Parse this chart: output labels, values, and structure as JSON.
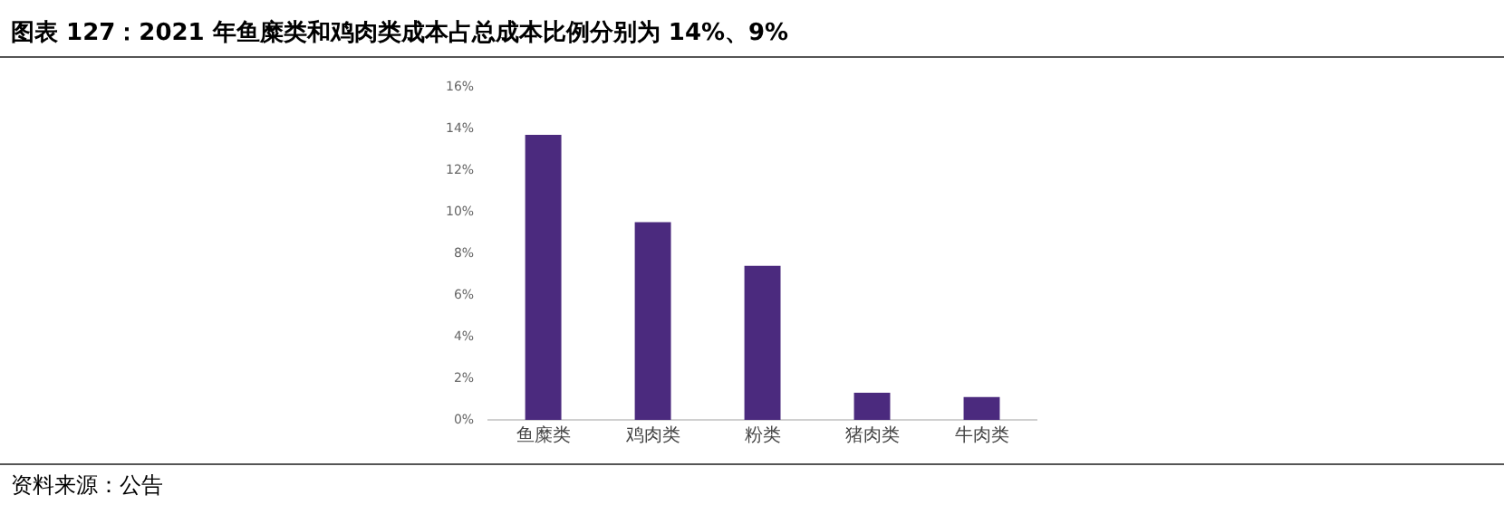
{
  "chart_data": {
    "type": "bar",
    "title": "图表 127：2021 年鱼糜类和鸡肉类成本占总成本比例分别为 14%、9%",
    "categories": [
      "鱼糜类",
      "鸡肉类",
      "粉类",
      "猪肉类",
      "牛肉类"
    ],
    "values": [
      13.7,
      9.5,
      7.4,
      1.3,
      1.1
    ],
    "color": "#4b2a7e",
    "ylim": [
      0,
      16
    ],
    "yticks": [
      {
        "value": 0,
        "label": "0%"
      },
      {
        "value": 2,
        "label": "2%"
      },
      {
        "value": 4,
        "label": "4%"
      },
      {
        "value": 6,
        "label": "6%"
      },
      {
        "value": 8,
        "label": "8%"
      },
      {
        "value": 10,
        "label": "10%"
      },
      {
        "value": 12,
        "label": "12%"
      },
      {
        "value": 14,
        "label": "14%"
      },
      {
        "value": 16,
        "label": "16%"
      }
    ],
    "grid": false,
    "legend": false,
    "annotations": [
      "资料来源：公告"
    ]
  }
}
